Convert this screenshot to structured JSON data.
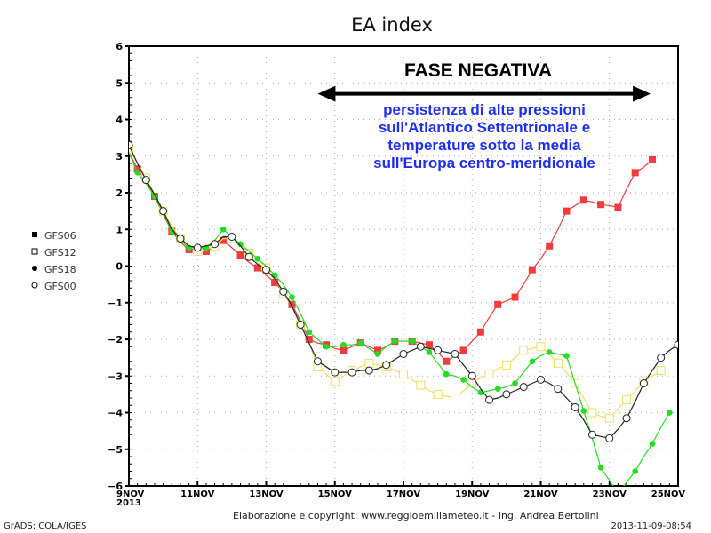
{
  "title": "EA index",
  "annotation": {
    "phase_label": "FASE NEGATIVA",
    "lines": [
      "persistenza di alte pressioni",
      "sull'Atlantico Settentrionale e",
      "temperature sotto la media",
      "sull'Europa centro-meridionale"
    ]
  },
  "legend": [
    {
      "name": "GFS06",
      "symbol": "filled-square"
    },
    {
      "name": "GFS12",
      "symbol": "open-square"
    },
    {
      "name": "GFS18",
      "symbol": "filled-circle"
    },
    {
      "name": "GFS00",
      "symbol": "open-circle"
    }
  ],
  "footer": {
    "credit": "Elaborazione e copyright: www.reggioemiliameteo.it - Ing. Andrea Bertolini",
    "timestamp": "2013-11-09-08:54",
    "software": "GrADS: COLA/IGES"
  },
  "chart_data": {
    "type": "line",
    "title": "EA index",
    "xlabel": "",
    "ylabel": "",
    "ylim": [
      -6,
      6
    ],
    "yticks": [
      6,
      5,
      4,
      3,
      2,
      1,
      0,
      -1,
      -2,
      -3,
      -4,
      -5,
      -6
    ],
    "xlim_days": [
      0,
      16
    ],
    "xticks": [
      {
        "day": 0,
        "label": "9NOV",
        "sub": "2013"
      },
      {
        "day": 2,
        "label": "11NOV"
      },
      {
        "day": 4,
        "label": "13NOV"
      },
      {
        "day": 6,
        "label": "15NOV"
      },
      {
        "day": 8,
        "label": "17NOV"
      },
      {
        "day": 10,
        "label": "19NOV"
      },
      {
        "day": 12,
        "label": "21NOV"
      },
      {
        "day": 14,
        "label": "23NOV"
      },
      {
        "day": 16,
        "label": "25NOV"
      }
    ],
    "grid": true,
    "legend_position": "left",
    "x_step_hours": 6,
    "series": [
      {
        "name": "GFS06",
        "color": "#f03c3c",
        "marker": "filled-square",
        "marker_offset": 1,
        "values": [
          3.1,
          2.65,
          2.3,
          1.9,
          1.4,
          0.95,
          0.65,
          0.45,
          0.45,
          0.4,
          0.55,
          0.7,
          0.5,
          0.3,
          0.1,
          -0.05,
          -0.25,
          -0.45,
          -0.7,
          -1.05,
          -1.5,
          -2.0,
          -2.1,
          -2.15,
          -2.25,
          -2.3,
          -2.2,
          -2.1,
          -2.2,
          -2.3,
          -2.2,
          -2.05,
          -2.05,
          -2.05,
          -2.1,
          -2.15,
          -2.35,
          -2.6,
          -2.45,
          -2.3,
          -2.05,
          -1.8,
          -1.4,
          -1.05,
          -0.95,
          -0.85,
          -0.5,
          -0.1,
          0.2,
          0.55,
          1.0,
          1.5,
          1.65,
          1.8,
          1.75,
          1.68,
          1.65,
          1.6,
          2.1,
          2.55,
          2.7,
          2.9
        ]
      },
      {
        "name": "GFS12",
        "color": "#f0e060",
        "marker": "open-square",
        "marker_offset": 0,
        "values": [
          3.2,
          2.8,
          2.4,
          1.95,
          1.5,
          1.1,
          0.75,
          0.55,
          0.4,
          0.45,
          0.55,
          0.75,
          0.75,
          0.55,
          0.35,
          0.1,
          -0.05,
          -0.35,
          -0.75,
          -1.1,
          -1.6,
          -2.1,
          -2.75,
          -2.95,
          -3.15,
          -3.0,
          -2.85,
          -2.75,
          -2.65,
          -2.7,
          -2.75,
          -2.85,
          -2.95,
          -3.1,
          -3.25,
          -3.4,
          -3.5,
          -3.55,
          -3.6,
          -3.4,
          -3.2,
          -3.05,
          -2.95,
          -2.8,
          -2.7,
          -2.5,
          -2.3,
          -2.25,
          -2.2,
          -2.4,
          -2.65,
          -2.9,
          -3.2,
          -3.6,
          -4.0,
          -4.1,
          -4.15,
          -3.9,
          -3.65,
          -3.4,
          -3.15,
          -3.0,
          -2.85
        ]
      },
      {
        "name": "GFS18",
        "color": "#22dd22",
        "marker": "filled-circle",
        "marker_offset": 1,
        "values": [
          3.1,
          2.55,
          2.25,
          1.9,
          1.45,
          0.95,
          0.7,
          0.5,
          0.5,
          0.5,
          0.7,
          1.0,
          0.8,
          0.6,
          0.4,
          0.2,
          0.0,
          -0.25,
          -0.5,
          -0.85,
          -1.3,
          -1.8,
          -2.0,
          -2.2,
          -2.2,
          -2.15,
          -2.15,
          -2.1,
          -2.25,
          -2.4,
          -2.2,
          -2.05,
          -2.05,
          -2.05,
          -2.2,
          -2.35,
          -2.65,
          -2.95,
          -3.0,
          -3.1,
          -3.3,
          -3.45,
          -3.4,
          -3.35,
          -3.3,
          -3.2,
          -2.9,
          -2.6,
          -2.45,
          -2.35,
          -2.4,
          -2.45,
          -3.2,
          -3.95,
          -4.7,
          -5.5,
          -5.85,
          -6.2,
          -5.9,
          -5.6,
          -5.2,
          -4.85,
          -4.4,
          -4.0
        ]
      },
      {
        "name": "GFS00",
        "color": "#222222",
        "marker": "open-circle",
        "marker_offset": 0,
        "values": [
          3.3,
          2.8,
          2.35,
          1.95,
          1.5,
          1.0,
          0.75,
          0.55,
          0.5,
          0.55,
          0.6,
          0.8,
          0.8,
          0.55,
          0.25,
          0.05,
          -0.1,
          -0.35,
          -0.7,
          -1.1,
          -1.6,
          -2.1,
          -2.6,
          -2.75,
          -2.9,
          -2.9,
          -2.9,
          -2.85,
          -2.85,
          -2.8,
          -2.7,
          -2.55,
          -2.4,
          -2.3,
          -2.2,
          -2.25,
          -2.3,
          -2.35,
          -2.4,
          -2.7,
          -3.0,
          -3.35,
          -3.65,
          -3.6,
          -3.5,
          -3.4,
          -3.3,
          -3.2,
          -3.1,
          -3.2,
          -3.35,
          -3.6,
          -3.85,
          -4.2,
          -4.6,
          -4.65,
          -4.7,
          -4.45,
          -4.15,
          -3.7,
          -3.2,
          -2.85,
          -2.5,
          -2.3,
          -2.15
        ]
      }
    ],
    "annotation_arrow": {
      "from_day": 5.5,
      "to_day": 15.2,
      "value": 4.7,
      "direction": "both"
    }
  }
}
